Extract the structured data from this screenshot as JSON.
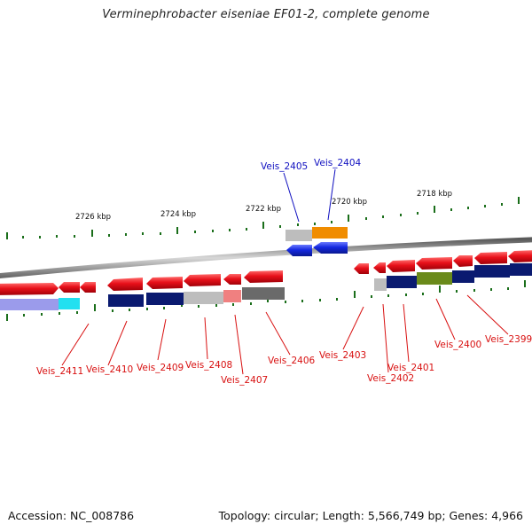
{
  "title": "Verminephrobacter eiseniae EF01-2, complete genome",
  "footer": {
    "accession": "Accession: NC_008786",
    "summary": "Topology: circular; Length: 5,566,749 bp; Genes: 4,966"
  },
  "scale_labels": [
    "2726 kbp",
    "2724 kbp",
    "2722 kbp",
    "2720 kbp",
    "2718 kbp"
  ],
  "gene_labels_top": [
    "Veis_2405",
    "Veis_2404"
  ],
  "gene_labels_bottom": [
    "Veis_2411",
    "Veis_2410",
    "Veis_2409",
    "Veis_2408",
    "Veis_2407",
    "Veis_2406",
    "Veis_2403",
    "Veis_2402",
    "Veis_2401",
    "Veis_2400",
    "Veis_2399"
  ],
  "colors": {
    "forward_gene": "#e8101a",
    "reverse_gene": "#1428e0",
    "label_bottom": "#d81010",
    "label_top": "#1010c0",
    "tick": "#1a6e1a",
    "backbone": "#888888"
  }
}
